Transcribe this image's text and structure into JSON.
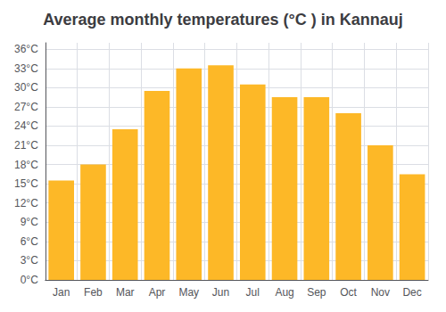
{
  "chart_data": {
    "type": "bar",
    "title": "Average monthly temperatures (°C ) in Kannauj",
    "categories": [
      "Jan",
      "Feb",
      "Mar",
      "Apr",
      "May",
      "Jun",
      "Jul",
      "Aug",
      "Sep",
      "Oct",
      "Nov",
      "Dec"
    ],
    "values": [
      15.5,
      18.0,
      23.5,
      29.5,
      33.0,
      33.5,
      30.5,
      28.5,
      28.5,
      26.0,
      21.0,
      16.5
    ],
    "color": "#FDB827",
    "ylim": [
      0,
      37
    ],
    "yticks": [
      {
        "value": 0,
        "label": "0°C"
      },
      {
        "value": 3,
        "label": "3°C"
      },
      {
        "value": 6,
        "label": "6°C"
      },
      {
        "value": 9,
        "label": "9°C"
      },
      {
        "value": 12,
        "label": "12°C"
      },
      {
        "value": 15,
        "label": "15°C"
      },
      {
        "value": 18,
        "label": "18°C"
      },
      {
        "value": 21,
        "label": "21°C"
      },
      {
        "value": 24,
        "label": "24°C"
      },
      {
        "value": 27,
        "label": "27°C"
      },
      {
        "value": 30,
        "label": "30°C"
      },
      {
        "value": 33,
        "label": "33°C"
      },
      {
        "value": 36,
        "label": "36°C"
      }
    ],
    "grid": true
  }
}
